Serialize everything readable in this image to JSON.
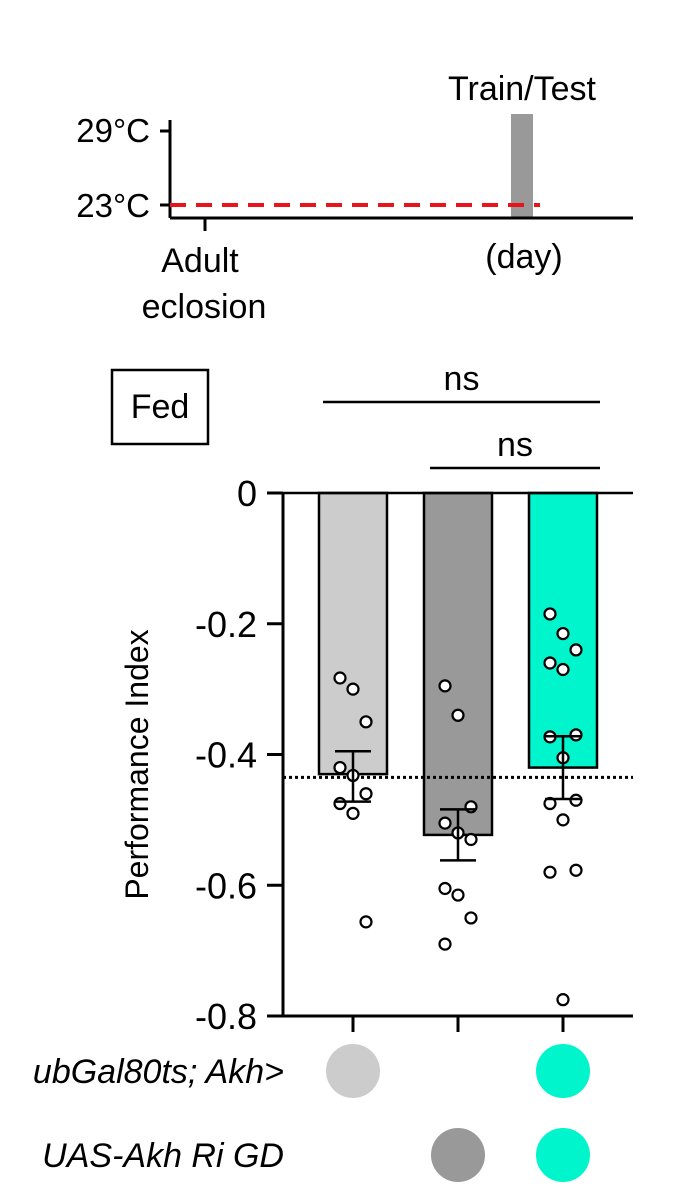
{
  "timeline": {
    "event_label": "Train/Test",
    "temp_high": "29°C",
    "temp_low": "23°C",
    "start_label_line1": "Adult",
    "start_label_line2": "eclosion",
    "end_label": "(day)",
    "line_color": "#e8141c",
    "event_bar_color": "#999999"
  },
  "condition_box": {
    "label": "Fed"
  },
  "significance": [
    {
      "label": "ns",
      "from": 0,
      "to": 2
    },
    {
      "label": "ns",
      "from": 1,
      "to": 2
    }
  ],
  "chart_data": {
    "type": "bar",
    "ylabel": "Performance Index",
    "ylim": [
      -0.8,
      0
    ],
    "yticks": [
      0,
      -0.2,
      -0.4,
      -0.6,
      -0.8
    ],
    "ytick_labels": [
      "0",
      "-0.2",
      "-0.4",
      "-0.6",
      "-0.8"
    ],
    "reference_line": -0.435,
    "bars": [
      {
        "value": -0.43,
        "sem_low": -0.472,
        "sem_high": -0.395,
        "color": "#cccccc",
        "points": [
          -0.283,
          -0.3,
          -0.35,
          -0.42,
          -0.432,
          -0.46,
          -0.475,
          -0.49,
          -0.656
        ]
      },
      {
        "value": -0.523,
        "sem_low": -0.562,
        "sem_high": -0.484,
        "color": "#999999",
        "points": [
          -0.295,
          -0.34,
          -0.48,
          -0.505,
          -0.52,
          -0.53,
          -0.605,
          -0.615,
          -0.65,
          -0.69
        ]
      },
      {
        "value": -0.42,
        "sem_low": -0.468,
        "sem_high": -0.372,
        "color": "#00f5cc",
        "points": [
          -0.185,
          -0.215,
          -0.24,
          -0.26,
          -0.27,
          -0.37,
          -0.373,
          -0.405,
          -0.47,
          -0.475,
          -0.5,
          -0.577,
          -0.58,
          -0.775
        ]
      }
    ],
    "genotype_rows": [
      {
        "label": "ubGal80ts; Akh>",
        "present": [
          true,
          false,
          true
        ]
      },
      {
        "label": "UAS-Akh Ri GD",
        "present": [
          false,
          true,
          true
        ]
      }
    ]
  }
}
